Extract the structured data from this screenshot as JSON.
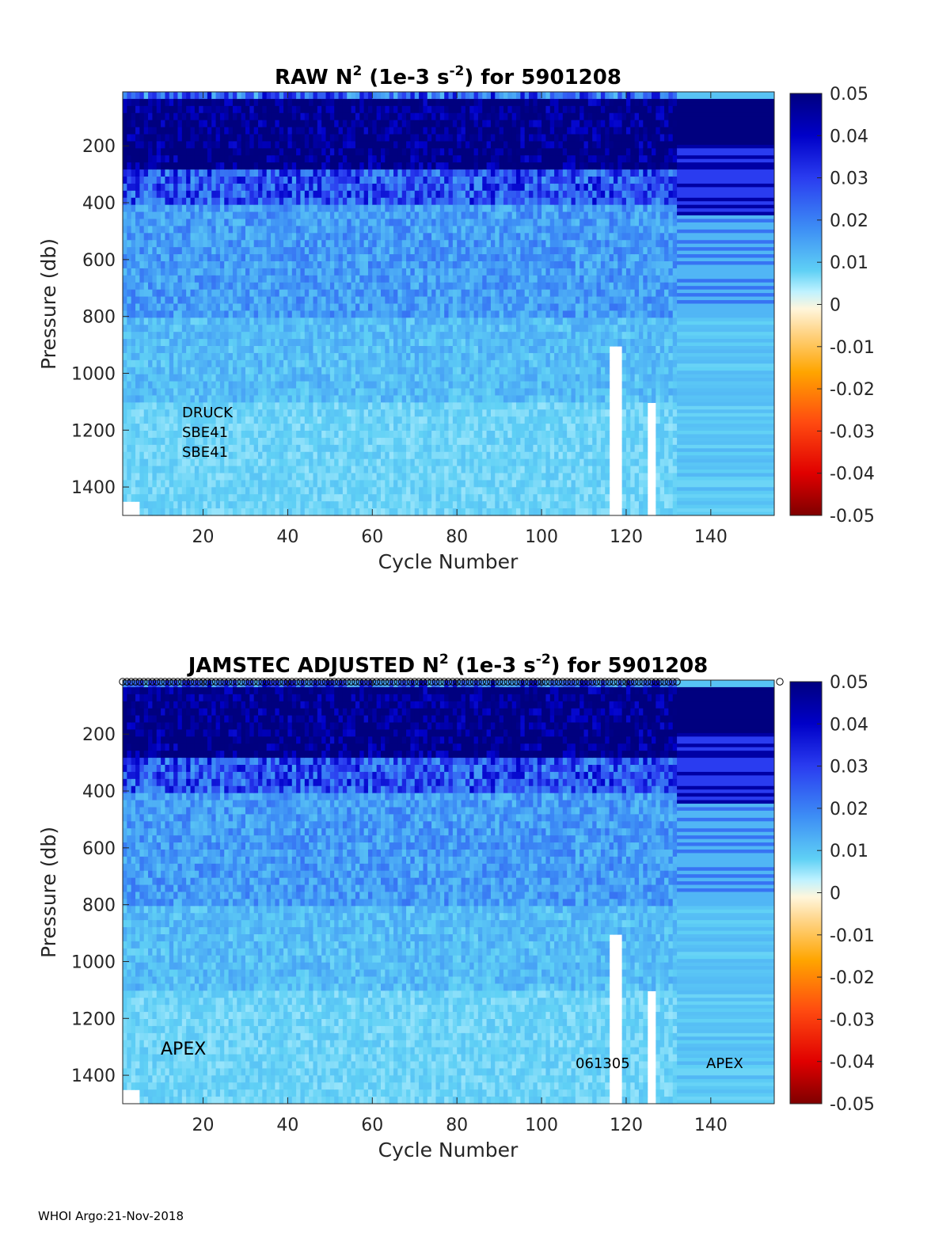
{
  "footer": "WHOI Argo:21-Nov-2018",
  "chart_data": [
    {
      "type": "heatmap",
      "title_parts": [
        "RAW N",
        "2",
        " (1e-3 s",
        "-2",
        ") for 5901208"
      ],
      "xlabel": "Cycle Number",
      "ylabel": "Pressure (db)",
      "xlim": [
        1,
        155
      ],
      "ylim": [
        1500,
        10
      ],
      "x_ticks": [
        20,
        40,
        60,
        80,
        100,
        120,
        140
      ],
      "y_ticks": [
        200,
        400,
        600,
        800,
        1000,
        1200,
        1400
      ],
      "colorbar": {
        "range": [
          -0.05,
          0.05
        ],
        "ticks": [
          "0.05",
          "0.04",
          "0.03",
          "0.02",
          "0.01",
          "0",
          "-0.01",
          "-0.02",
          "-0.03",
          "-0.04",
          "-0.05"
        ]
      },
      "annotations": [
        "DRUCK",
        "SBE41",
        "SBE41"
      ],
      "grid": false
    },
    {
      "type": "heatmap",
      "title_parts": [
        "JAMSTEC  ADJUSTED N",
        "2",
        " (1e-3 s",
        "-2",
        ") for 5901208"
      ],
      "xlabel": "Cycle Number",
      "ylabel": "Pressure (db)",
      "xlim": [
        1,
        155
      ],
      "ylim": [
        1500,
        10
      ],
      "x_ticks": [
        20,
        40,
        60,
        80,
        100,
        120,
        140
      ],
      "y_ticks": [
        200,
        400,
        600,
        800,
        1000,
        1200,
        1400
      ],
      "colorbar": {
        "range": [
          -0.05,
          0.05
        ],
        "ticks": [
          "0.05",
          "0.04",
          "0.03",
          "0.02",
          "0.01",
          "0",
          "-0.01",
          "-0.02",
          "-0.03",
          "-0.04",
          "-0.05"
        ]
      },
      "annotations": [
        "APEX",
        "061305",
        "APEX"
      ],
      "grid": false
    }
  ]
}
